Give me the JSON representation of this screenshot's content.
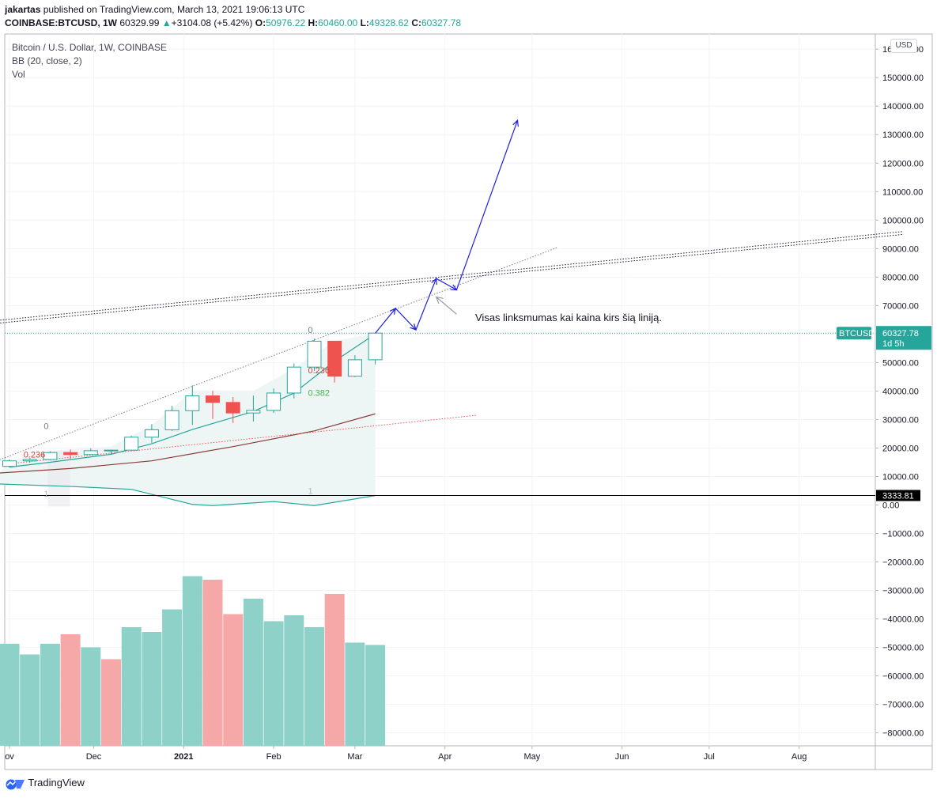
{
  "header": {
    "user": "jakartas",
    "published": "published on TradingView.com, March 13, 2021 19:06:13 UTC",
    "symbol": "COINBASE:BTCUSD, 1W",
    "last": "60329.99",
    "change": "+3104.08 (+5.42%)",
    "o_label": "O:",
    "o": "50976.22",
    "h_label": "H:",
    "h": "60460.00",
    "l_label": "L:",
    "l": "49328.62",
    "c_label": "C:",
    "c": "60327.78"
  },
  "legend": {
    "title": "Bitcoin / U.S. Dollar, 1W, COINBASE",
    "bb": "BB (20, close, 2)",
    "vol": "Vol"
  },
  "currency_button": "USD",
  "annotation": "Visas linksmumas kai kaina kirs šią liniją.",
  "price_tag": {
    "symbol": "BTCUSD",
    "price": "60327.78",
    "countdown": "1d 5h"
  },
  "crosshair_label": "3333.81",
  "footer_brand": "TradingView",
  "fib_labels": [
    {
      "text": "0",
      "color": "#787b86",
      "price": 61500,
      "date": "2021-02-15"
    },
    {
      "text": "0.236",
      "color": "#e53935",
      "price": 47400,
      "date": "2021-02-15"
    },
    {
      "text": "0.382",
      "color": "#4caf50",
      "price": 39400,
      "date": "2021-02-15"
    },
    {
      "text": "1",
      "color": "#b2b5be",
      "price": 5000,
      "date": "2021-02-15"
    },
    {
      "text": "0",
      "color": "#787b86",
      "price": 27800,
      "date": "2020-11-16"
    },
    {
      "text": "0.236",
      "color": "#e53935",
      "price": 17800,
      "date": "2020-11-09"
    },
    {
      "text": "1",
      "color": "#b2b5be",
      "price": 4000,
      "date": "2020-11-16"
    }
  ],
  "colors": {
    "up": "#26a69a",
    "down": "#ef5350",
    "vol_up": "#8ed1c9",
    "vol_down": "#f5a8a7",
    "bb_basis": "#26a69a",
    "bb_fill": "#eef6f5",
    "arrow": "#1e1ee8",
    "ma": "#8d3a3a"
  },
  "chart_data": {
    "type": "candlestick",
    "timeframe": "1W",
    "currency": "USD",
    "candles": [
      {
        "date": "2020-11-02",
        "o": 13550,
        "h": 15960,
        "l": 13200,
        "c": 15480
      },
      {
        "date": "2020-11-09",
        "o": 15480,
        "h": 16480,
        "l": 14800,
        "c": 15960
      },
      {
        "date": "2020-11-16",
        "o": 15960,
        "h": 18800,
        "l": 15700,
        "c": 18400
      },
      {
        "date": "2020-11-23",
        "o": 18400,
        "h": 19500,
        "l": 16200,
        "c": 17700
      },
      {
        "date": "2020-11-30",
        "o": 17700,
        "h": 19900,
        "l": 17600,
        "c": 19050
      },
      {
        "date": "2020-12-07",
        "o": 19050,
        "h": 19400,
        "l": 17600,
        "c": 19250
      },
      {
        "date": "2020-12-14",
        "o": 19250,
        "h": 24300,
        "l": 19000,
        "c": 23800
      },
      {
        "date": "2020-12-21",
        "o": 23800,
        "h": 28400,
        "l": 21800,
        "c": 26400
      },
      {
        "date": "2020-12-28",
        "o": 26400,
        "h": 34800,
        "l": 26000,
        "c": 33100
      },
      {
        "date": "2021-01-04",
        "o": 33100,
        "h": 42000,
        "l": 28100,
        "c": 38300
      },
      {
        "date": "2021-01-11",
        "o": 38300,
        "h": 40100,
        "l": 30200,
        "c": 36000
      },
      {
        "date": "2021-01-18",
        "o": 36000,
        "h": 37900,
        "l": 28800,
        "c": 32300
      },
      {
        "date": "2021-01-25",
        "o": 32300,
        "h": 38400,
        "l": 29300,
        "c": 33200
      },
      {
        "date": "2021-02-01",
        "o": 33200,
        "h": 40900,
        "l": 32300,
        "c": 39300
      },
      {
        "date": "2021-02-08",
        "o": 39300,
        "h": 49700,
        "l": 37400,
        "c": 48400
      },
      {
        "date": "2021-02-15",
        "o": 48400,
        "h": 58400,
        "l": 47100,
        "c": 57500
      },
      {
        "date": "2021-02-22",
        "o": 57500,
        "h": 57600,
        "l": 43000,
        "c": 45200
      },
      {
        "date": "2021-03-01",
        "o": 45200,
        "h": 52600,
        "l": 44900,
        "c": 50976.22
      },
      {
        "date": "2021-03-08",
        "o": 50976.22,
        "h": 60460,
        "l": 49328.62,
        "c": 60327.78
      }
    ],
    "volume": [
      {
        "date": "2020-11-02",
        "v": 86000,
        "dir": "up"
      },
      {
        "date": "2020-11-09",
        "v": 77000,
        "dir": "up"
      },
      {
        "date": "2020-11-16",
        "v": 86000,
        "dir": "up"
      },
      {
        "date": "2020-11-23",
        "v": 94000,
        "dir": "down"
      },
      {
        "date": "2020-11-30",
        "v": 83000,
        "dir": "up"
      },
      {
        "date": "2020-12-07",
        "v": 73000,
        "dir": "down"
      },
      {
        "date": "2020-12-14",
        "v": 100000,
        "dir": "up"
      },
      {
        "date": "2020-12-21",
        "v": 96000,
        "dir": "up"
      },
      {
        "date": "2020-12-28",
        "v": 115000,
        "dir": "up"
      },
      {
        "date": "2021-01-04",
        "v": 143000,
        "dir": "up"
      },
      {
        "date": "2021-01-11",
        "v": 140000,
        "dir": "down"
      },
      {
        "date": "2021-01-18",
        "v": 111000,
        "dir": "down"
      },
      {
        "date": "2021-01-25",
        "v": 124000,
        "dir": "up"
      },
      {
        "date": "2021-02-01",
        "v": 105000,
        "dir": "up"
      },
      {
        "date": "2021-02-08",
        "v": 110000,
        "dir": "up"
      },
      {
        "date": "2021-02-15",
        "v": 100000,
        "dir": "up"
      },
      {
        "date": "2021-02-22",
        "v": 128000,
        "dir": "down"
      },
      {
        "date": "2021-03-01",
        "v": 87000,
        "dir": "up"
      },
      {
        "date": "2021-03-08",
        "v": 85000,
        "dir": "up"
      }
    ],
    "bb_basis": [
      {
        "date": "2020-11-02",
        "p": 13300
      },
      {
        "date": "2020-11-16",
        "p": 15000
      },
      {
        "date": "2020-12-07",
        "p": 17800
      },
      {
        "date": "2020-12-21",
        "p": 21500
      },
      {
        "date": "2021-01-04",
        "p": 26500
      },
      {
        "date": "2021-01-25",
        "p": 32800
      },
      {
        "date": "2021-02-08",
        "p": 39300
      },
      {
        "date": "2021-02-22",
        "p": 50500
      },
      {
        "date": "2021-03-08",
        "p": 60000
      }
    ],
    "bb_upper_fill_top": [
      {
        "date": "2020-11-02",
        "p": 15000
      },
      {
        "date": "2020-11-16",
        "p": 19000
      },
      {
        "date": "2020-12-07",
        "p": 20500
      },
      {
        "date": "2020-12-21",
        "p": 28000
      },
      {
        "date": "2021-01-04",
        "p": 40000
      },
      {
        "date": "2021-01-25",
        "p": 40000
      },
      {
        "date": "2021-02-08",
        "p": 48000
      },
      {
        "date": "2021-02-22",
        "p": 57500
      },
      {
        "date": "2021-03-08",
        "p": 60300
      }
    ],
    "bb_lower": [
      {
        "date": "2020-10-26",
        "p": 7500
      },
      {
        "date": "2020-11-23",
        "p": 6500
      },
      {
        "date": "2020-12-14",
        "p": 5500
      },
      {
        "date": "2021-01-04",
        "p": 200
      },
      {
        "date": "2021-01-11",
        "p": -200
      },
      {
        "date": "2021-02-01",
        "p": 1200
      },
      {
        "date": "2021-02-15",
        "p": -200
      },
      {
        "date": "2021-03-08",
        "p": 3300
      }
    ],
    "ma_line": [
      {
        "date": "2020-10-26",
        "p": 11000
      },
      {
        "date": "2020-11-23",
        "p": 12800
      },
      {
        "date": "2020-12-21",
        "p": 15500
      },
      {
        "date": "2021-01-18",
        "p": 20500
      },
      {
        "date": "2021-02-15",
        "p": 26000
      },
      {
        "date": "2021-03-08",
        "p": 32000
      }
    ],
    "trendlines": [
      {
        "style": "dotted",
        "color": "#787b86",
        "from": {
          "date": "2020-10-26",
          "price": 14500
        },
        "to": {
          "date": "2021-05-10",
          "price": 90500
        }
      },
      {
        "style": "dotted",
        "color": "#131722",
        "from": {
          "date": "2020-10-26",
          "price": 64500
        },
        "to": {
          "date": "2021-09-06",
          "price": 96000
        }
      },
      {
        "style": "dotted",
        "color": "#131722",
        "from": {
          "date": "2020-10-26",
          "price": 63500
        },
        "to": {
          "date": "2021-09-06",
          "price": 95000
        }
      },
      {
        "style": "dotted",
        "color": "#ef5350",
        "from": {
          "date": "2020-11-02",
          "price": 14500
        },
        "to": {
          "date": "2021-04-12",
          "price": 31500
        }
      }
    ],
    "projection_path": [
      {
        "date": "2021-03-08",
        "p": 60300
      },
      {
        "date": "2021-03-15",
        "p": 69000
      },
      {
        "date": "2021-03-22",
        "p": 61500
      },
      {
        "date": "2021-03-29",
        "p": 79500
      },
      {
        "date": "2021-04-05",
        "p": 75500
      },
      {
        "date": "2021-04-26",
        "p": 135000
      }
    ],
    "pointer_arrow": {
      "from": {
        "date": "2021-04-05",
        "p": 67000
      },
      "to": {
        "date": "2021-03-29",
        "p": 73000
      }
    },
    "price_axis": {
      "range": [
        -85000,
        160000
      ],
      "step": 10000
    },
    "volume_range": [
      0,
      150000
    ],
    "x_ticks": [
      {
        "label": "ov",
        "date": "2020-11-02"
      },
      {
        "label": "Dec",
        "date": "2020-12-01"
      },
      {
        "label": "2021",
        "date": "2021-01-01"
      },
      {
        "label": "Feb",
        "date": "2021-02-01"
      },
      {
        "label": "Mar",
        "date": "2021-03-01"
      },
      {
        "label": "Apr",
        "date": "2021-04-01"
      },
      {
        "label": "May",
        "date": "2021-05-01"
      },
      {
        "label": "Jun",
        "date": "2021-06-01"
      },
      {
        "label": "Jul",
        "date": "2021-07-01"
      },
      {
        "label": "Aug",
        "date": "2021-08-01"
      }
    ],
    "last_price": 60327.78,
    "crosshair_price": 3333.81
  }
}
